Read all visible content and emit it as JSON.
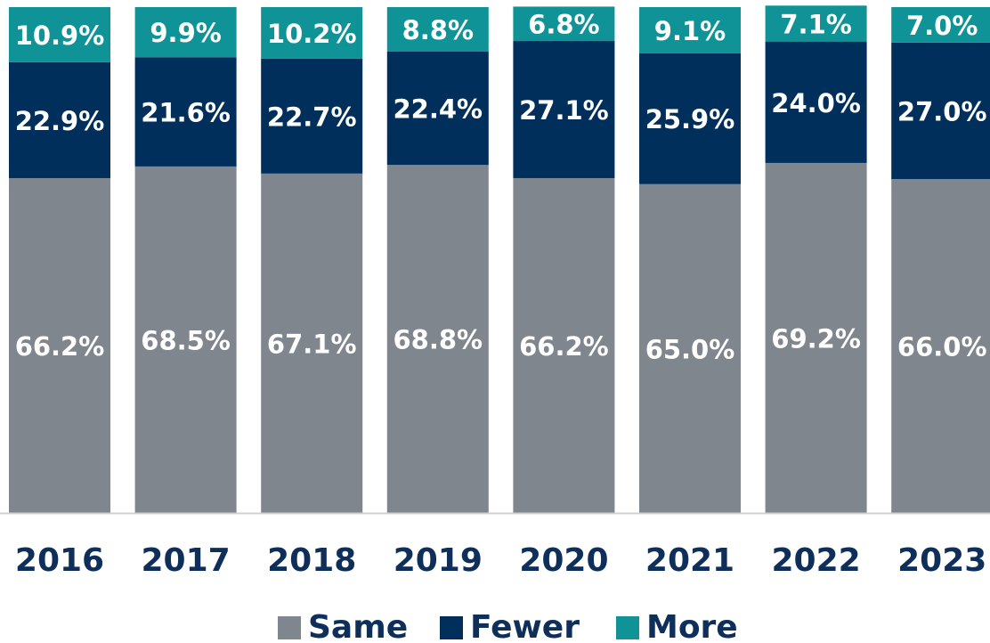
{
  "chart_data": {
    "type": "stacked_bar",
    "categories": [
      "2016",
      "2017",
      "2018",
      "2019",
      "2020",
      "2021",
      "2022",
      "2023"
    ],
    "ylim": [
      0,
      100
    ],
    "series": [
      {
        "name": "Same",
        "color": "#7f868e",
        "values": [
          66.2,
          68.5,
          67.1,
          68.8,
          66.2,
          65.0,
          69.2,
          66.0
        ],
        "value_labels": [
          "66.2%",
          "68.5%",
          "67.1%",
          "68.8%",
          "66.2%",
          "65.0%",
          "69.2%",
          "66.0%"
        ]
      },
      {
        "name": "Fewer",
        "color": "#012f5c",
        "values": [
          22.9,
          21.6,
          22.7,
          22.4,
          27.1,
          25.9,
          24.0,
          27.0
        ],
        "value_labels": [
          "22.9%",
          "21.6%",
          "22.7%",
          "22.4%",
          "27.1%",
          "25.9%",
          "24.0%",
          "27.0%"
        ]
      },
      {
        "name": "More",
        "color": "#0f9396",
        "values": [
          10.9,
          9.9,
          10.2,
          8.8,
          6.8,
          9.1,
          7.1,
          7.0
        ],
        "value_labels": [
          "10.9%",
          "9.9%",
          "10.2%",
          "8.8%",
          "6.8%",
          "9.1%",
          "7.1%",
          "7.0%"
        ]
      }
    ]
  }
}
